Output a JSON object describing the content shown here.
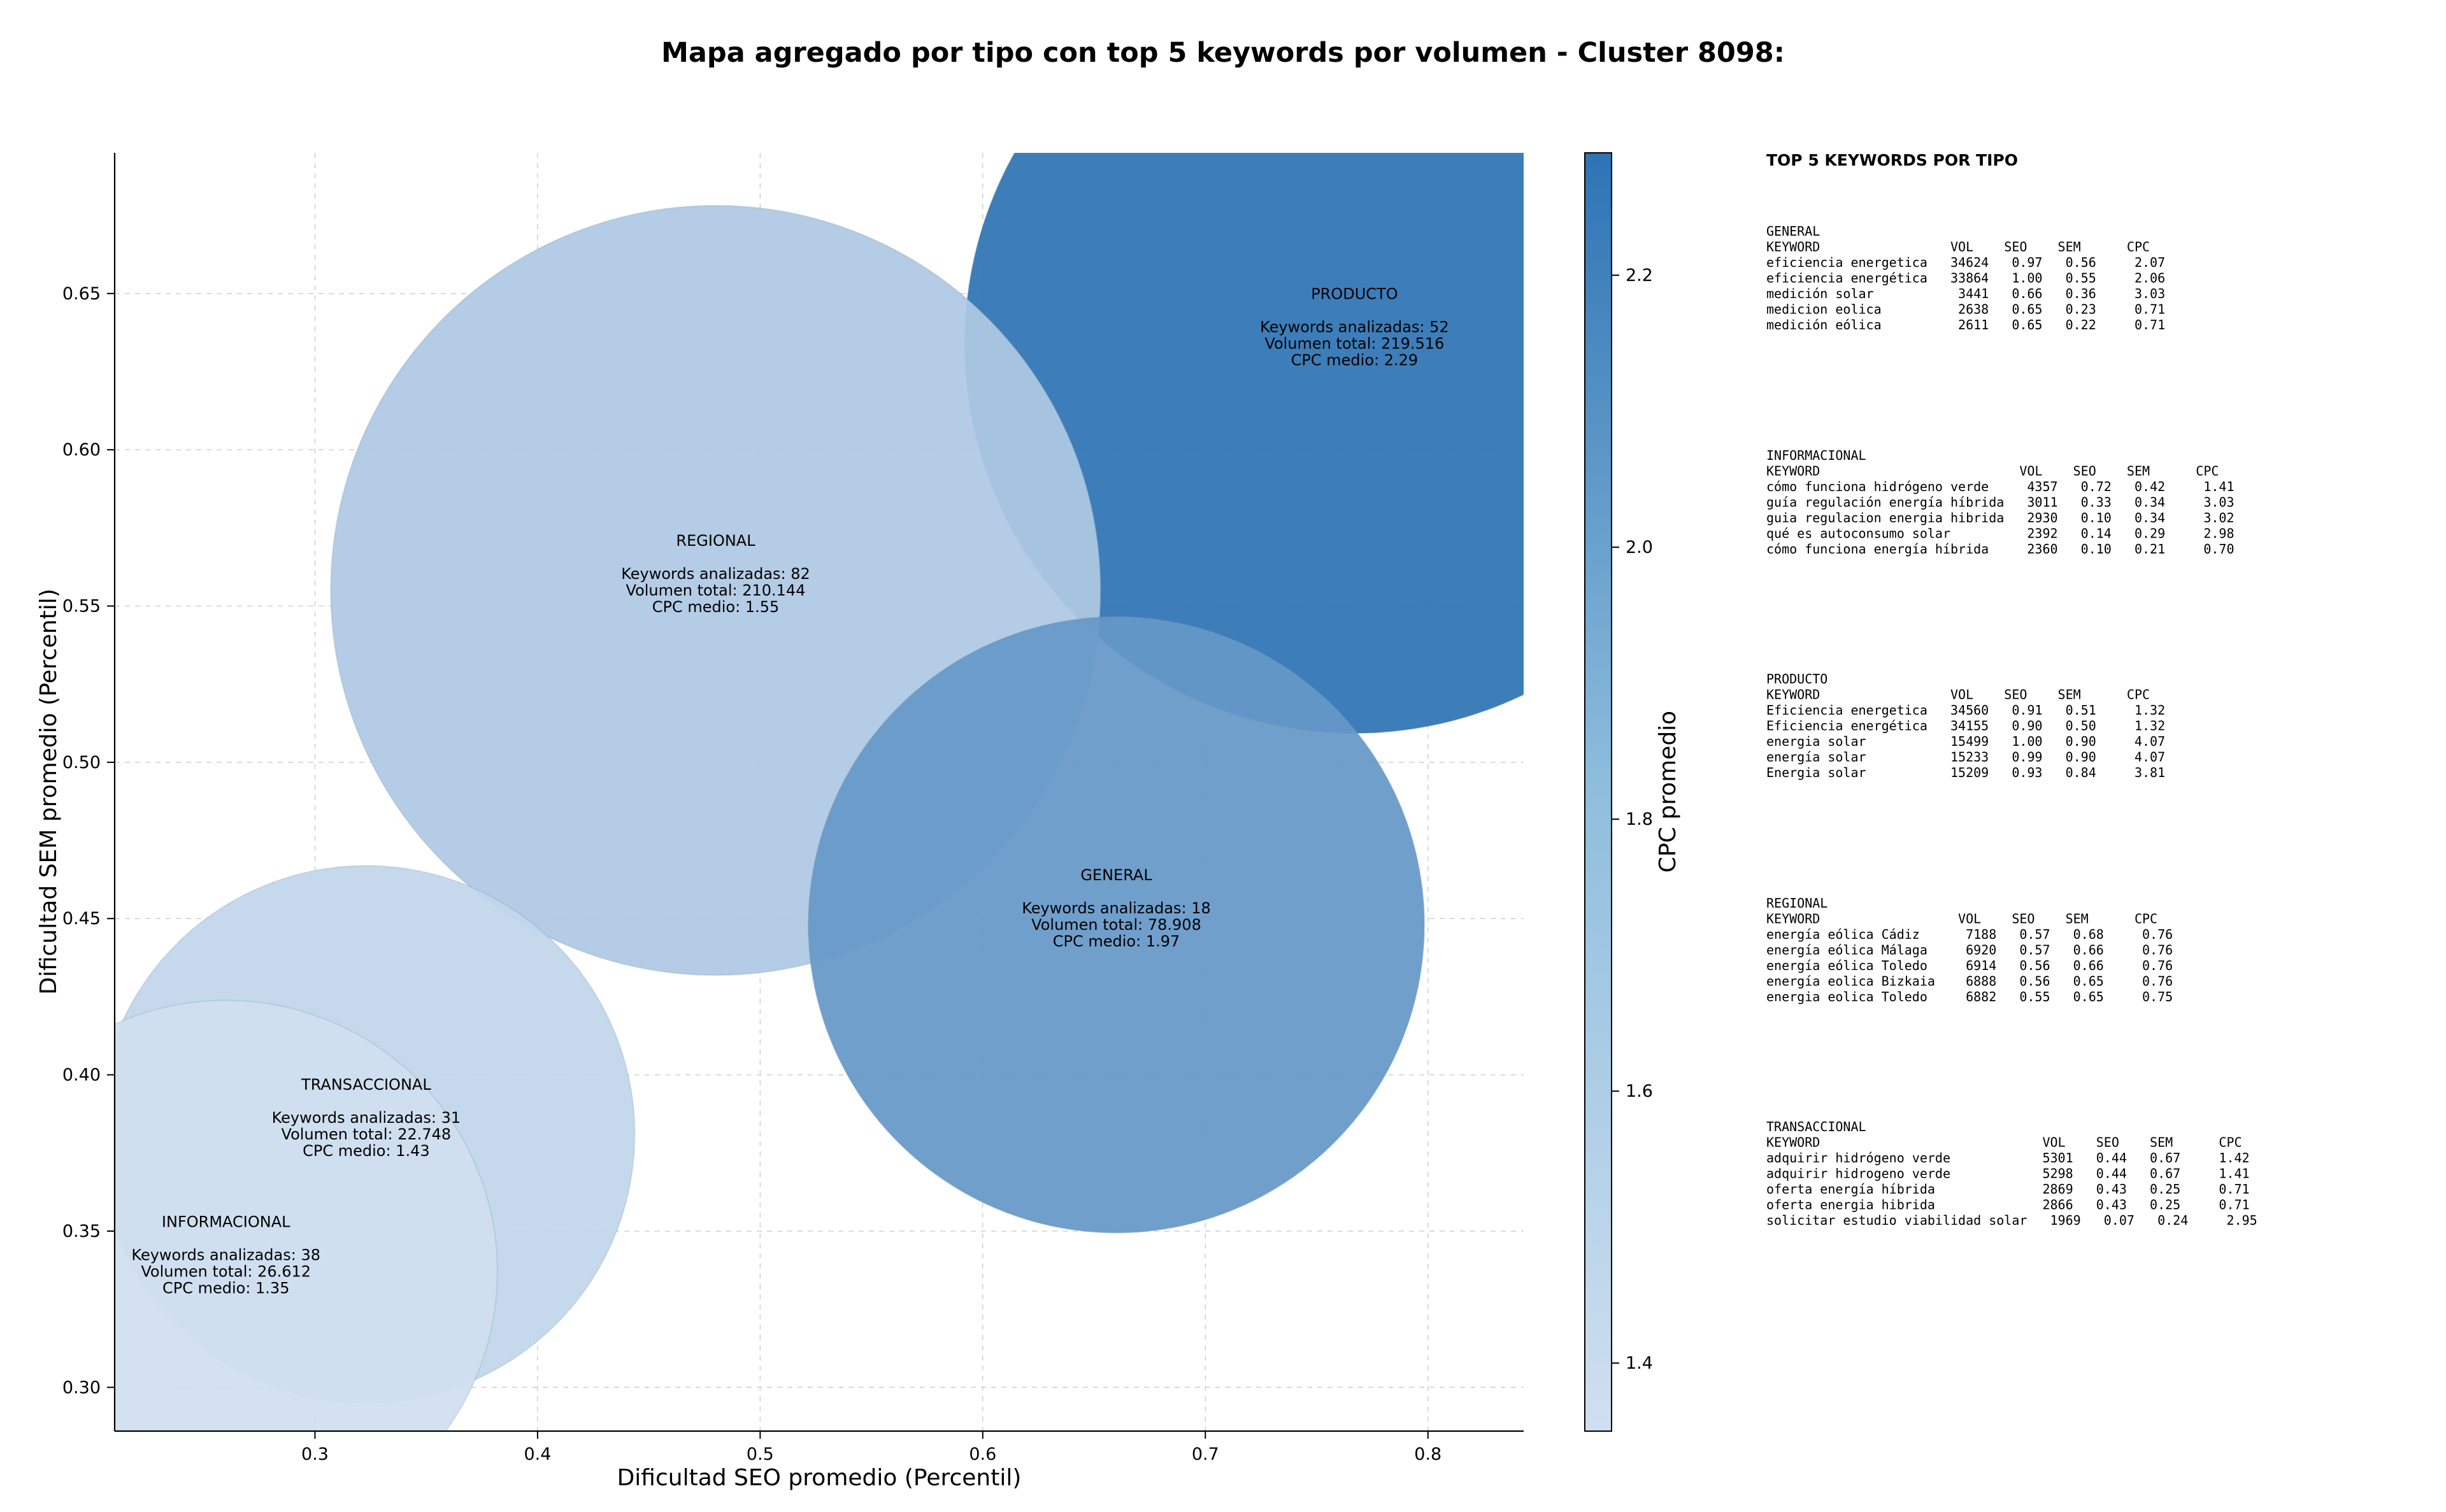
{
  "chart_data": {
    "type": "scatter",
    "title": "Mapa agregado por tipo con top 5 keywords por volumen - Cluster 8098:",
    "xlabel": "Dificultad SEO promedio (Percentil)",
    "ylabel": "Dificultad SEM promedio (Percentil)",
    "xlim": [
      0.21,
      0.843
    ],
    "ylim": [
      0.286,
      0.695
    ],
    "xticks": [
      "0.3",
      "0.4",
      "0.5",
      "0.6",
      "0.7",
      "0.8"
    ],
    "yticks": [
      "0.30",
      "0.35",
      "0.40",
      "0.45",
      "0.50",
      "0.55",
      "0.60",
      "0.65"
    ],
    "grid": true,
    "colorbar": {
      "label": "CPC promedio",
      "range": [
        1.35,
        2.29
      ],
      "ticks": [
        "1.4",
        "1.6",
        "1.8",
        "2.0",
        "2.2"
      ],
      "color_low": "#d0dff0",
      "color_high": "#2e73b4"
    },
    "points": [
      {
        "type": "PRODUCTO",
        "x": 0.767,
        "y": 0.634,
        "keywords_line": "Keywords analizadas: 52",
        "volume_line": "Volumen total: 219.516",
        "cpc_line": "CPC medio: 2.29",
        "keywords": 52,
        "volume": 219516,
        "cpc": 2.29
      },
      {
        "type": "REGIONAL",
        "x": 0.48,
        "y": 0.555,
        "keywords_line": "Keywords analizadas: 82",
        "volume_line": "Volumen total: 210.144",
        "cpc_line": "CPC medio: 1.55",
        "keywords": 82,
        "volume": 210144,
        "cpc": 1.55
      },
      {
        "type": "GENERAL",
        "x": 0.66,
        "y": 0.448,
        "keywords_line": "Keywords analizadas: 18",
        "volume_line": "Volumen total: 78.908",
        "cpc_line": "CPC medio: 1.97",
        "keywords": 18,
        "volume": 78908,
        "cpc": 1.97
      },
      {
        "type": "TRANSACCIONAL",
        "x": 0.323,
        "y": 0.381,
        "keywords_line": "Keywords analizadas: 31",
        "volume_line": "Volumen total: 22.748",
        "cpc_line": "CPC medio: 1.43",
        "keywords": 31,
        "volume": 22748,
        "cpc": 1.43
      },
      {
        "type": "INFORMACIONAL",
        "x": 0.26,
        "y": 0.337,
        "keywords_line": "Keywords analizadas: 38",
        "volume_line": "Volumen total: 26.612",
        "cpc_line": "CPC medio: 1.35",
        "keywords": 38,
        "volume": 26612,
        "cpc": 1.35
      }
    ]
  },
  "side_panel": {
    "heading": "TOP 5 KEYWORDS POR TIPO",
    "sections": [
      {
        "name": "GENERAL",
        "lines": [
          "KEYWORD                 VOL    SEO    SEM      CPC",
          "eficiencia energetica   34624   0.97   0.56     2.07",
          "eficiencia energética   33864   1.00   0.55     2.06",
          "medición solar           3441   0.66   0.36     3.03",
          "medicion eolica          2638   0.65   0.23     0.71",
          "medición eólica          2611   0.65   0.22     0.71"
        ]
      },
      {
        "name": "INFORMACIONAL",
        "lines": [
          "KEYWORD                          VOL    SEO    SEM      CPC",
          "cómo funciona hidrógeno verde     4357   0.72   0.42     1.41",
          "guía regulación energía híbrida   3011   0.33   0.34     3.03",
          "guia regulacion energia hibrida   2930   0.10   0.34     3.02",
          "qué es autoconsumo solar          2392   0.14   0.29     2.98",
          "cómo funciona energía híbrida     2360   0.10   0.21     0.70"
        ]
      },
      {
        "name": "PRODUCTO",
        "lines": [
          "KEYWORD                 VOL    SEO    SEM      CPC",
          "Eficiencia energetica   34560   0.91   0.51     1.32",
          "Eficiencia energética   34155   0.90   0.50     1.32",
          "energia solar           15499   1.00   0.90     4.07",
          "energía solar           15233   0.99   0.90     4.07",
          "Energia solar           15209   0.93   0.84     3.81"
        ]
      },
      {
        "name": "REGIONAL",
        "lines": [
          "KEYWORD                  VOL    SEO    SEM      CPC",
          "energía eólica Cádiz      7188   0.57   0.68     0.76",
          "energía eólica Málaga     6920   0.57   0.66     0.76",
          "energía eólica Toledo     6914   0.56   0.66     0.76",
          "energía eolica Bizkaia    6888   0.56   0.65     0.76",
          "energia eolica Toledo     6882   0.55   0.65     0.75"
        ]
      },
      {
        "name": "TRANSACCIONAL",
        "lines": [
          "KEYWORD                             VOL    SEO    SEM      CPC",
          "adquirir hidrógeno verde            5301   0.44   0.67     1.42",
          "adquirir hidrogeno verde            5298   0.44   0.67     1.41",
          "oferta energía híbrida              2869   0.43   0.25     0.71",
          "oferta energia hibrida              2866   0.43   0.25     0.71",
          "solicitar estudio viabilidad solar   1969   0.07   0.24     2.95"
        ]
      }
    ]
  }
}
